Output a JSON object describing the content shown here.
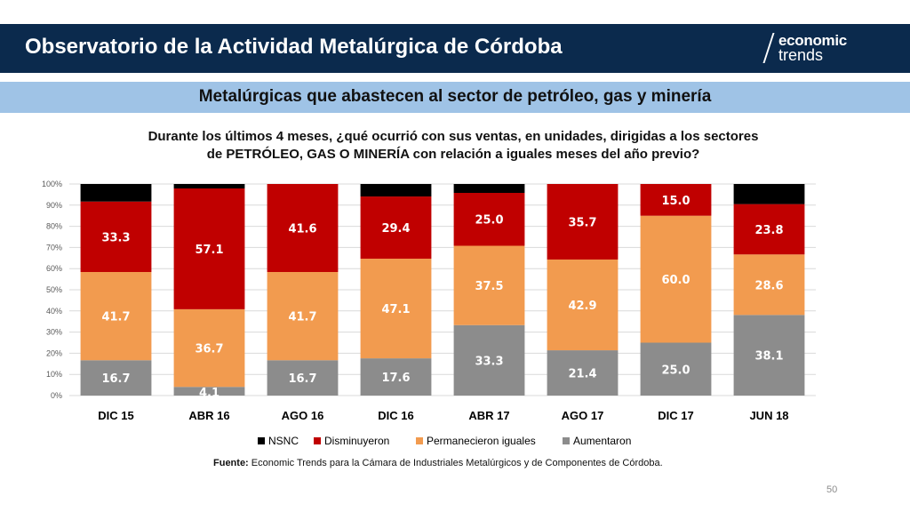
{
  "header": {
    "title": "Observatorio de la Actividad Metalúrgica de Córdoba",
    "logo_top": "economic",
    "logo_bottom": "trends"
  },
  "subtitle": "Metalúrgicas que abastecen al sector de petróleo, gas y minería",
  "question_line1": "Durante los últimos 4 meses, ¿qué ocurrió con sus ventas, en unidades, dirigidas a los sectores",
  "question_line2": "de PETRÓLEO, GAS O MINERÍA con relación a iguales meses del año previo?",
  "source": {
    "label": "Fuente:",
    "text": " Economic Trends para la Cámara de Industriales Metalúrgicos y de Componentes de Córdoba."
  },
  "page_number": "50",
  "chart_data": {
    "type": "bar",
    "stacked": true,
    "categories": [
      "DIC 15",
      "ABR 16",
      "AGO 16",
      "DIC 16",
      "ABR 17",
      "AGO 17",
      "DIC 17",
      "JUN 18"
    ],
    "y_ticks": [
      "0%",
      "10%",
      "20%",
      "30%",
      "40%",
      "50%",
      "60%",
      "70%",
      "80%",
      "90%",
      "100%"
    ],
    "ylim": [
      0,
      100
    ],
    "series": [
      {
        "name": "Aumentaron",
        "color": "#8c8c8c",
        "values": [
          16.7,
          4.1,
          16.7,
          17.6,
          33.3,
          21.4,
          25.0,
          38.1
        ],
        "labels": [
          "16.7",
          "4.1",
          "16.7",
          "17.6",
          "33.3",
          "21.4",
          "25.0",
          "38.1"
        ]
      },
      {
        "name": "Permanecieron iguales",
        "color": "#f29b4f",
        "values": [
          41.7,
          36.7,
          41.7,
          47.1,
          37.5,
          42.9,
          60.0,
          28.6
        ],
        "labels": [
          "41.7",
          "36.7",
          "41.7",
          "47.1",
          "37.5",
          "42.9",
          "60.0",
          "28.6"
        ]
      },
      {
        "name": "Disminuyeron",
        "color": "#c00000",
        "values": [
          33.3,
          57.1,
          41.6,
          29.4,
          25.0,
          35.7,
          15.0,
          23.8
        ],
        "labels": [
          "33.3",
          "57.1",
          "41.6",
          "29.4",
          "25.0",
          "35.7",
          "15.0",
          "23.8"
        ]
      },
      {
        "name": "NSNC",
        "color": "#000000",
        "values": [
          8.3,
          2.1,
          0,
          5.9,
          4.2,
          0,
          0,
          9.5
        ],
        "labels": [
          "",
          "",
          "",
          "",
          "",
          "",
          "",
          ""
        ]
      }
    ],
    "legend": [
      "NSNC",
      "Disminuyeron",
      "Permanecieron iguales",
      "Aumentaron"
    ],
    "legend_position": "bottom"
  }
}
